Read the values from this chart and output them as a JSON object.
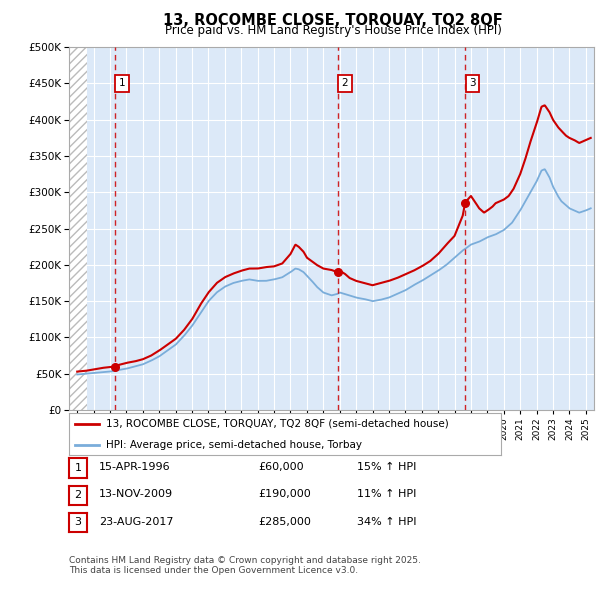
{
  "title": "13, ROCOMBE CLOSE, TORQUAY, TQ2 8QF",
  "subtitle": "Price paid vs. HM Land Registry's House Price Index (HPI)",
  "legend_line1": "13, ROCOMBE CLOSE, TORQUAY, TQ2 8QF (semi-detached house)",
  "legend_line2": "HPI: Average price, semi-detached house, Torbay",
  "footnote_line1": "Contains HM Land Registry data © Crown copyright and database right 2025.",
  "footnote_line2": "This data is licensed under the Open Government Licence v3.0.",
  "sales": [
    {
      "num": 1,
      "date": "15-APR-1996",
      "price": "£60,000",
      "pct": "15% ↑ HPI",
      "year": 1996.29,
      "price_val": 60000
    },
    {
      "num": 2,
      "date": "13-NOV-2009",
      "price": "£190,000",
      "pct": "11% ↑ HPI",
      "year": 2009.87,
      "price_val": 190000
    },
    {
      "num": 3,
      "date": "23-AUG-2017",
      "price": "£285,000",
      "pct": "34% ↑ HPI",
      "year": 2017.64,
      "price_val": 285000
    }
  ],
  "ylim": [
    0,
    500000
  ],
  "xlim": [
    1993.5,
    2025.5
  ],
  "yticks": [
    0,
    50000,
    100000,
    150000,
    200000,
    250000,
    300000,
    350000,
    400000,
    450000,
    500000
  ],
  "bg_color": "#dce9f8",
  "grid_color": "#ffffff",
  "red_color": "#cc0000",
  "blue_color": "#7aadda",
  "hatch_end": 1994.6
}
